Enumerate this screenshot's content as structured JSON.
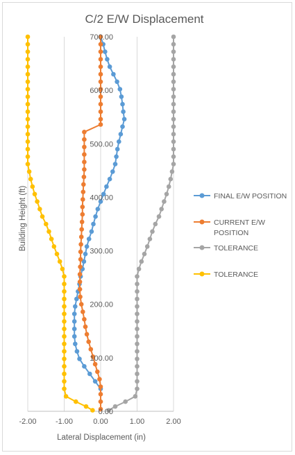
{
  "chart_data": {
    "type": "scatter",
    "title": "C/2 E/W Displacement",
    "xlabel": "Lateral Displacement (in)",
    "ylabel": "Building Height (ft)",
    "xlim": [
      -2,
      2
    ],
    "ylim": [
      0,
      700
    ],
    "x_ticks": [
      "-2.00",
      "-1.00",
      "0.00",
      "1.00",
      "2.00"
    ],
    "y_ticks": [
      "0.00",
      "100.00",
      "200.00",
      "300.00",
      "400.00",
      "500.00",
      "600.00",
      "700.00"
    ],
    "grid": "vertical",
    "legend_position": "right",
    "series": [
      {
        "name": "FINAL E/W POSITION",
        "color": "#5B9BD5",
        "points": [
          [
            0.0,
            700
          ],
          [
            0.07,
            686
          ],
          [
            0.12,
            672
          ],
          [
            0.18,
            658
          ],
          [
            0.25,
            644
          ],
          [
            0.35,
            630
          ],
          [
            0.45,
            616
          ],
          [
            0.53,
            602
          ],
          [
            0.57,
            588
          ],
          [
            0.6,
            574
          ],
          [
            0.62,
            560
          ],
          [
            0.65,
            546
          ],
          [
            0.6,
            532
          ],
          [
            0.55,
            518
          ],
          [
            0.5,
            504
          ],
          [
            0.46,
            490
          ],
          [
            0.43,
            476
          ],
          [
            0.4,
            462
          ],
          [
            0.33,
            448
          ],
          [
            0.25,
            434
          ],
          [
            0.16,
            420
          ],
          [
            0.08,
            406
          ],
          [
            0.0,
            392
          ],
          [
            -0.08,
            378
          ],
          [
            -0.14,
            364
          ],
          [
            -0.2,
            350
          ],
          [
            -0.25,
            336
          ],
          [
            -0.32,
            322
          ],
          [
            -0.38,
            308
          ],
          [
            -0.42,
            294
          ],
          [
            -0.46,
            280
          ],
          [
            -0.5,
            266
          ],
          [
            -0.55,
            252
          ],
          [
            -0.58,
            238
          ],
          [
            -0.62,
            224
          ],
          [
            -0.66,
            210
          ],
          [
            -0.7,
            196
          ],
          [
            -0.72,
            182
          ],
          [
            -0.72,
            168
          ],
          [
            -0.72,
            154
          ],
          [
            -0.72,
            140
          ],
          [
            -0.7,
            126
          ],
          [
            -0.65,
            112
          ],
          [
            -0.58,
            98
          ],
          [
            -0.45,
            84
          ],
          [
            -0.3,
            70
          ],
          [
            -0.15,
            56
          ],
          [
            0.0,
            42
          ]
        ]
      },
      {
        "name": "CURRENT E/W POSITION",
        "color": "#ED7D31",
        "points": [
          [
            0.0,
            700
          ],
          [
            0.0,
            686
          ],
          [
            0.0,
            672
          ],
          [
            0.0,
            658
          ],
          [
            0.0,
            644
          ],
          [
            0.0,
            630
          ],
          [
            0.0,
            616
          ],
          [
            0.0,
            602
          ],
          [
            0.0,
            588
          ],
          [
            0.0,
            574
          ],
          [
            0.0,
            560
          ],
          [
            0.0,
            546
          ],
          [
            0.0,
            536
          ],
          [
            -0.45,
            522
          ],
          [
            -0.45,
            508
          ],
          [
            -0.45,
            494
          ],
          [
            -0.45,
            480
          ],
          [
            -0.45,
            466
          ],
          [
            -0.45,
            452
          ],
          [
            -0.46,
            438
          ],
          [
            -0.47,
            424
          ],
          [
            -0.48,
            410
          ],
          [
            -0.49,
            396
          ],
          [
            -0.5,
            382
          ],
          [
            -0.5,
            368
          ],
          [
            -0.51,
            354
          ],
          [
            -0.52,
            340
          ],
          [
            -0.53,
            326
          ],
          [
            -0.54,
            312
          ],
          [
            -0.55,
            298
          ],
          [
            -0.55,
            284
          ],
          [
            -0.56,
            270
          ],
          [
            -0.57,
            256
          ],
          [
            -0.57,
            242
          ],
          [
            -0.57,
            228
          ],
          [
            -0.56,
            214
          ],
          [
            -0.53,
            200
          ],
          [
            -0.49,
            186
          ],
          [
            -0.45,
            172
          ],
          [
            -0.42,
            158
          ],
          [
            -0.38,
            144
          ],
          [
            -0.33,
            130
          ],
          [
            -0.27,
            116
          ],
          [
            -0.21,
            102
          ],
          [
            -0.15,
            88
          ],
          [
            -0.09,
            74
          ],
          [
            -0.03,
            60
          ],
          [
            0.0,
            46
          ],
          [
            0.0,
            32
          ],
          [
            0.0,
            18
          ],
          [
            0.0,
            4
          ]
        ]
      },
      {
        "name": "TOLERANCE",
        "color": "#A5A5A5",
        "points": [
          [
            2.0,
            700
          ],
          [
            2.0,
            686
          ],
          [
            2.0,
            672
          ],
          [
            2.0,
            658
          ],
          [
            2.0,
            644
          ],
          [
            2.0,
            630
          ],
          [
            2.0,
            616
          ],
          [
            2.0,
            602
          ],
          [
            2.0,
            588
          ],
          [
            2.0,
            574
          ],
          [
            2.0,
            560
          ],
          [
            2.0,
            546
          ],
          [
            2.0,
            532
          ],
          [
            2.0,
            518
          ],
          [
            2.0,
            504
          ],
          [
            2.0,
            490
          ],
          [
            2.0,
            476
          ],
          [
            2.0,
            462
          ],
          [
            1.96,
            448
          ],
          [
            1.92,
            434
          ],
          [
            1.87,
            420
          ],
          [
            1.81,
            406
          ],
          [
            1.74,
            392
          ],
          [
            1.67,
            378
          ],
          [
            1.6,
            364
          ],
          [
            1.5,
            350
          ],
          [
            1.42,
            336
          ],
          [
            1.35,
            322
          ],
          [
            1.28,
            308
          ],
          [
            1.2,
            294
          ],
          [
            1.12,
            280
          ],
          [
            1.05,
            266
          ],
          [
            1.0,
            252
          ],
          [
            1.0,
            238
          ],
          [
            1.0,
            224
          ],
          [
            1.0,
            210
          ],
          [
            1.0,
            196
          ],
          [
            1.0,
            182
          ],
          [
            1.0,
            168
          ],
          [
            1.0,
            154
          ],
          [
            1.0,
            140
          ],
          [
            1.0,
            126
          ],
          [
            1.0,
            112
          ],
          [
            1.0,
            98
          ],
          [
            1.0,
            84
          ],
          [
            1.0,
            70
          ],
          [
            1.0,
            56
          ],
          [
            1.0,
            42
          ],
          [
            0.95,
            28
          ],
          [
            0.68,
            18
          ],
          [
            0.4,
            9
          ],
          [
            0.22,
            2
          ]
        ]
      },
      {
        "name": "TOLERANCE",
        "color": "#FFC000",
        "points": [
          [
            -2.0,
            700
          ],
          [
            -2.0,
            686
          ],
          [
            -2.0,
            672
          ],
          [
            -2.0,
            658
          ],
          [
            -2.0,
            644
          ],
          [
            -2.0,
            630
          ],
          [
            -2.0,
            616
          ],
          [
            -2.0,
            602
          ],
          [
            -2.0,
            588
          ],
          [
            -2.0,
            574
          ],
          [
            -2.0,
            560
          ],
          [
            -2.0,
            546
          ],
          [
            -2.0,
            532
          ],
          [
            -2.0,
            518
          ],
          [
            -2.0,
            504
          ],
          [
            -2.0,
            490
          ],
          [
            -2.0,
            476
          ],
          [
            -2.0,
            462
          ],
          [
            -1.96,
            448
          ],
          [
            -1.92,
            434
          ],
          [
            -1.87,
            420
          ],
          [
            -1.81,
            406
          ],
          [
            -1.74,
            392
          ],
          [
            -1.67,
            378
          ],
          [
            -1.6,
            364
          ],
          [
            -1.5,
            350
          ],
          [
            -1.42,
            336
          ],
          [
            -1.35,
            322
          ],
          [
            -1.28,
            308
          ],
          [
            -1.2,
            294
          ],
          [
            -1.12,
            280
          ],
          [
            -1.05,
            266
          ],
          [
            -1.0,
            252
          ],
          [
            -1.0,
            238
          ],
          [
            -1.0,
            224
          ],
          [
            -1.0,
            210
          ],
          [
            -1.0,
            196
          ],
          [
            -1.0,
            182
          ],
          [
            -1.0,
            168
          ],
          [
            -1.0,
            154
          ],
          [
            -1.0,
            140
          ],
          [
            -1.0,
            126
          ],
          [
            -1.0,
            112
          ],
          [
            -1.0,
            98
          ],
          [
            -1.0,
            84
          ],
          [
            -1.0,
            70
          ],
          [
            -1.0,
            56
          ],
          [
            -1.0,
            42
          ],
          [
            -0.95,
            28
          ],
          [
            -0.68,
            18
          ],
          [
            -0.4,
            9
          ],
          [
            -0.22,
            2
          ]
        ]
      }
    ]
  },
  "legend": [
    {
      "lines": [
        "FINAL E/W POSITION"
      ],
      "color": "#5B9BD5"
    },
    {
      "lines": [
        "CURRENT E/W",
        "POSITION"
      ],
      "color": "#ED7D31"
    },
    {
      "lines": [
        "TOLERANCE"
      ],
      "color": "#A5A5A5"
    },
    {
      "lines": [
        "TOLERANCE"
      ],
      "color": "#FFC000"
    }
  ]
}
